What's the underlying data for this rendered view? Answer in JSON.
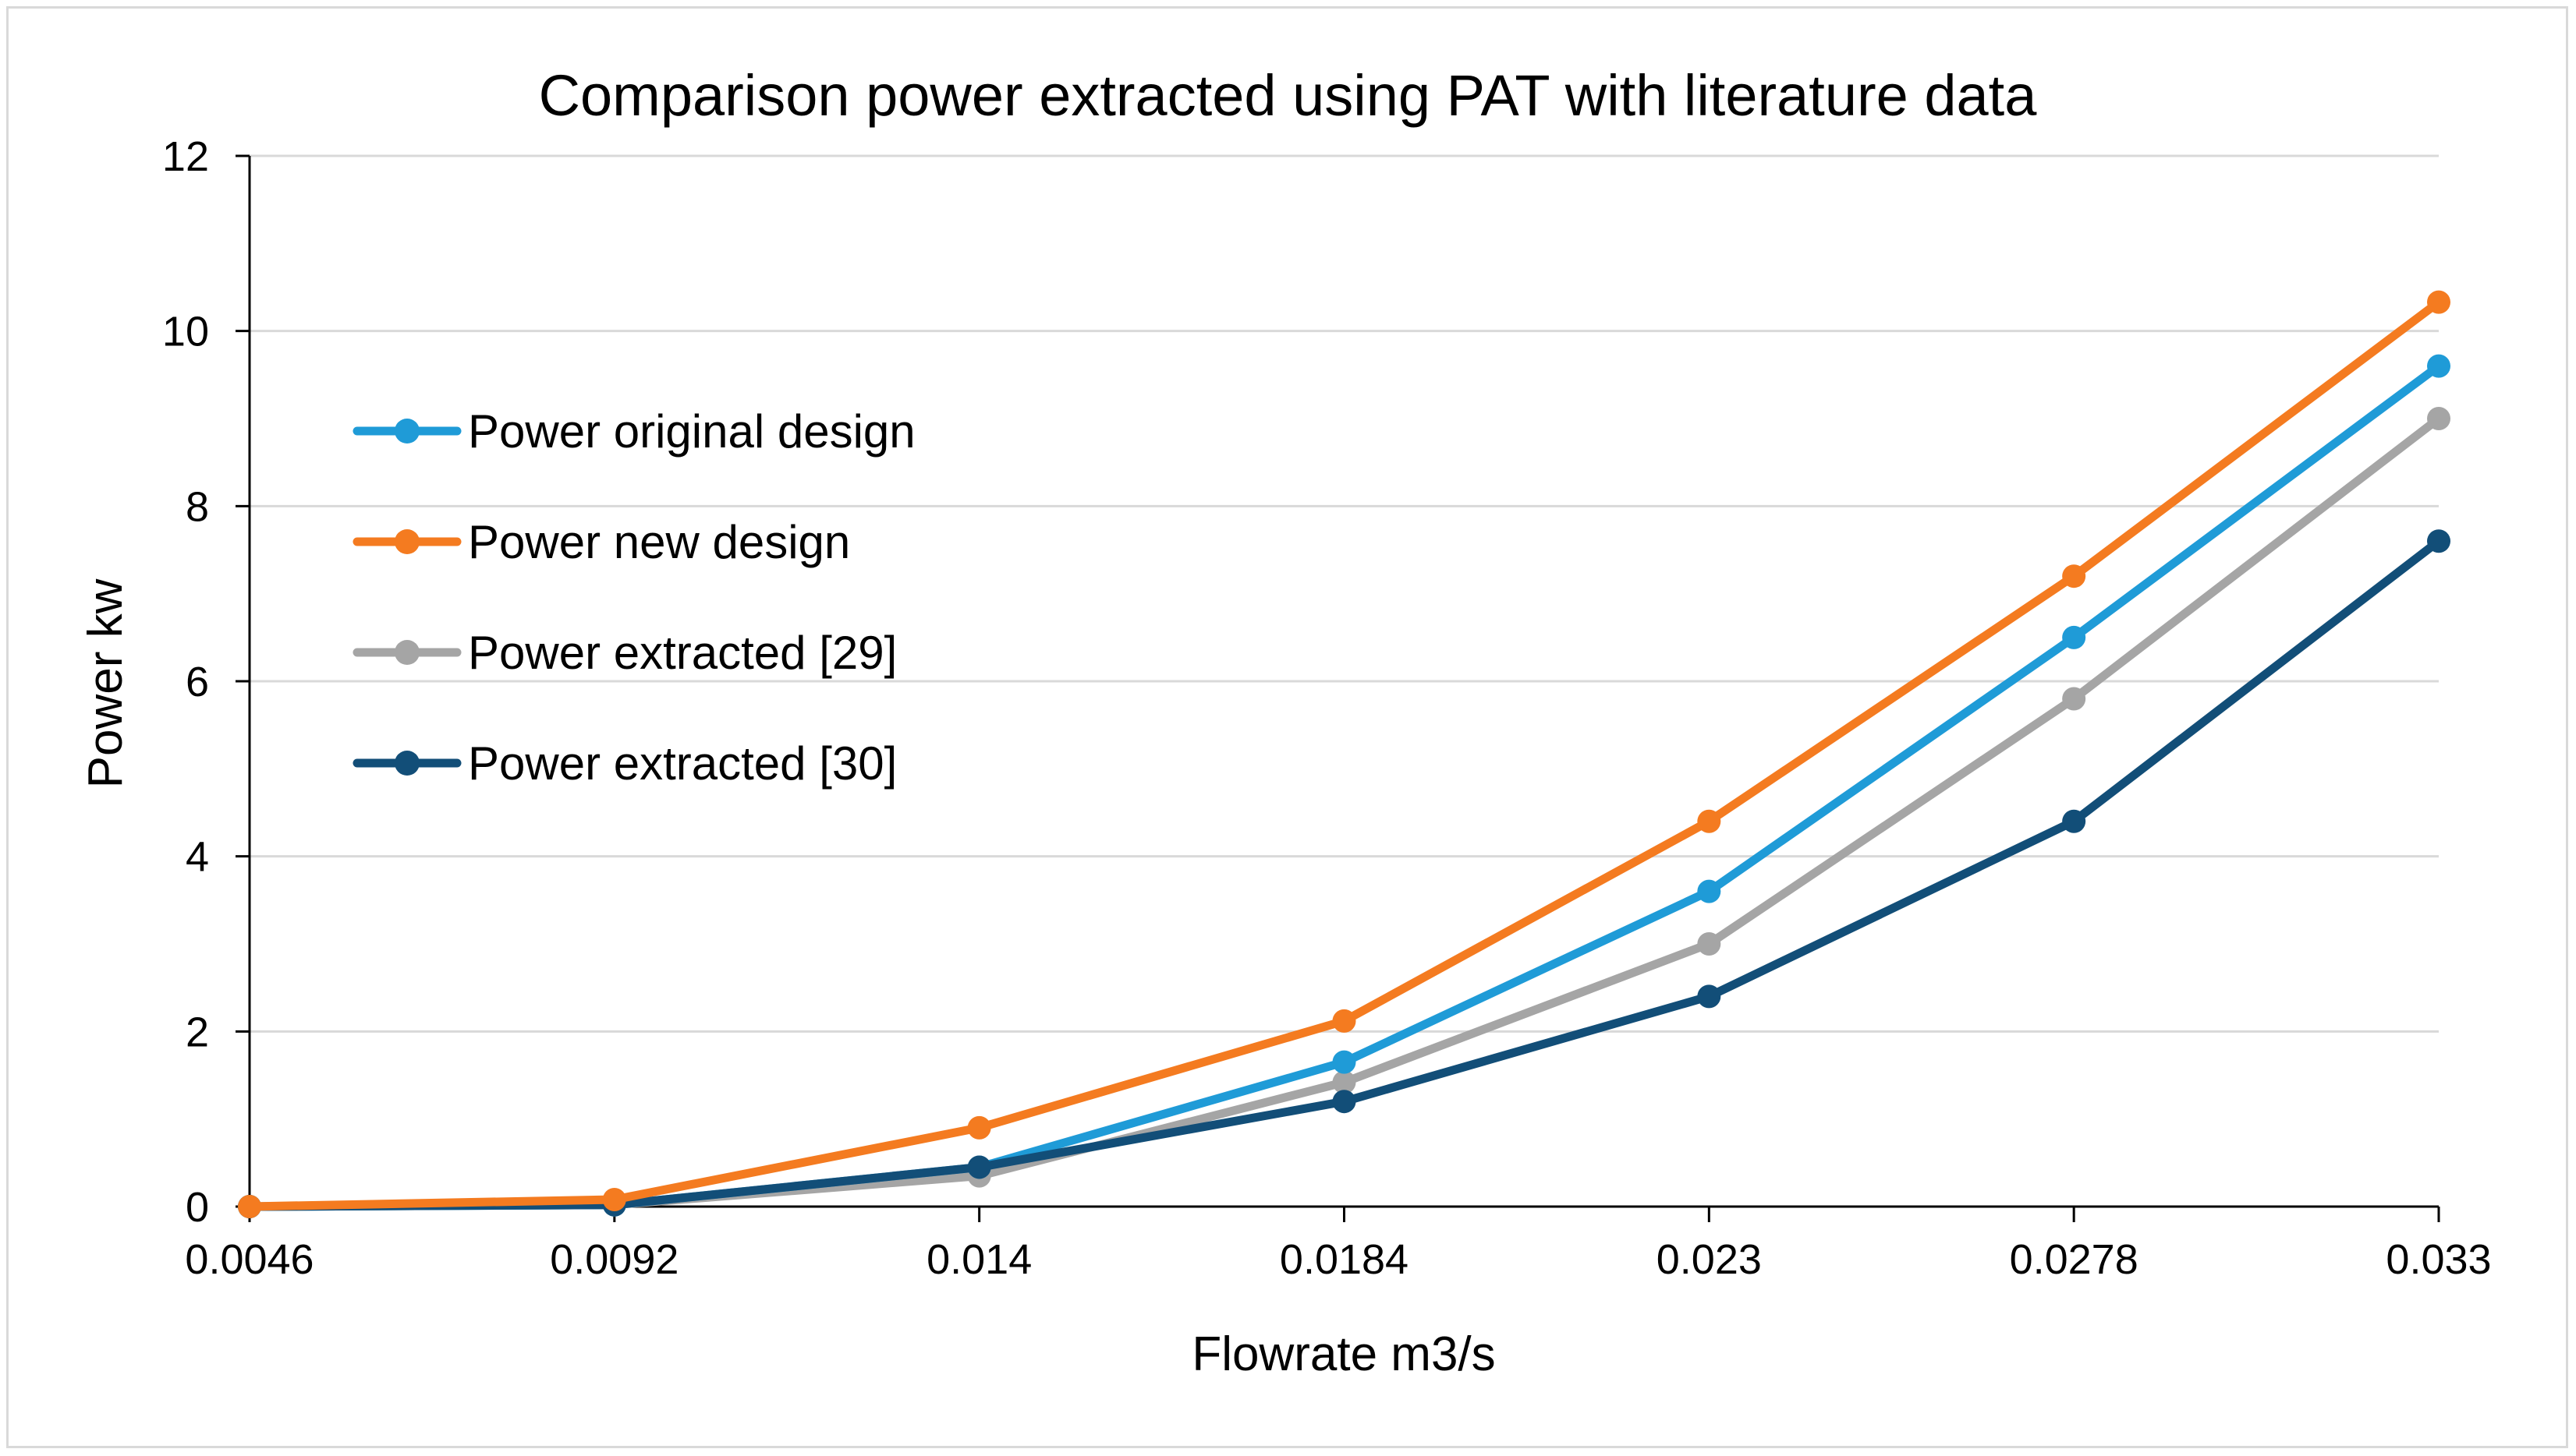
{
  "chart_data": {
    "type": "line",
    "title": "Comparison  power extracted using PAT with literature data",
    "xlabel": "Flowrate m3/s",
    "ylabel": "Power kw",
    "x": [
      "0.0046",
      "0.0092",
      "0.014",
      "0.0184",
      "0.023",
      "0.0278",
      "0.033"
    ],
    "ylim": [
      0,
      12
    ],
    "yticks": [
      0,
      2,
      4,
      6,
      8,
      10,
      12
    ],
    "grid": true,
    "legend_position": "upper-left",
    "series": [
      {
        "name": "Power original design",
        "color": "#1f9bd7",
        "values": [
          0,
          0.02,
          0.45,
          1.65,
          3.6,
          6.5,
          9.6
        ]
      },
      {
        "name": "Power new design",
        "color": "#f47b20",
        "values": [
          0,
          0.08,
          0.9,
          2.12,
          4.4,
          7.2,
          10.33
        ]
      },
      {
        "name": "Power extracted [29]",
        "color": "#a5a5a5",
        "values": [
          0,
          0.02,
          0.35,
          1.42,
          3.0,
          5.8,
          9.0
        ]
      },
      {
        "name": "Power extracted [30]",
        "color": "#124e78",
        "values": [
          0,
          0.02,
          0.45,
          1.2,
          2.4,
          4.4,
          7.6
        ]
      }
    ]
  }
}
